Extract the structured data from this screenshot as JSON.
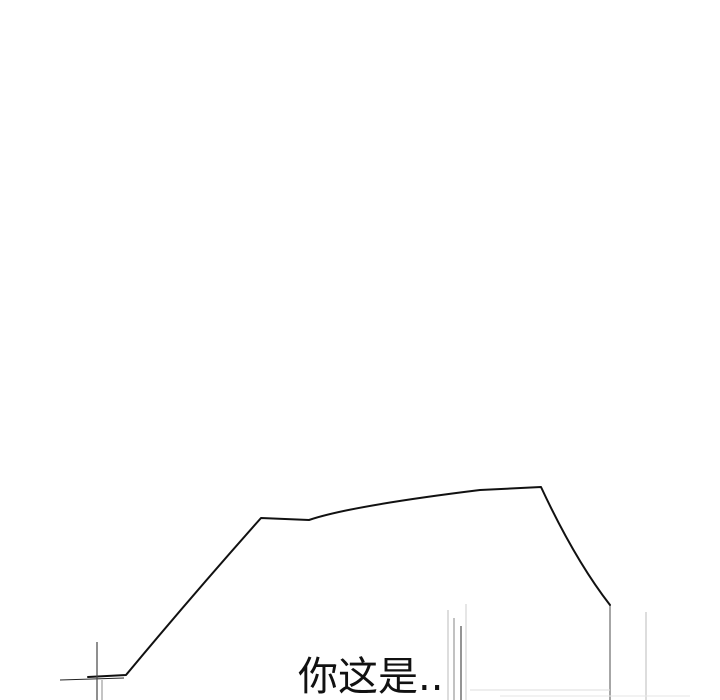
{
  "panel": {
    "caption": "你这是..",
    "colors": {
      "background": "#ffffff",
      "ink": "#111111"
    }
  }
}
